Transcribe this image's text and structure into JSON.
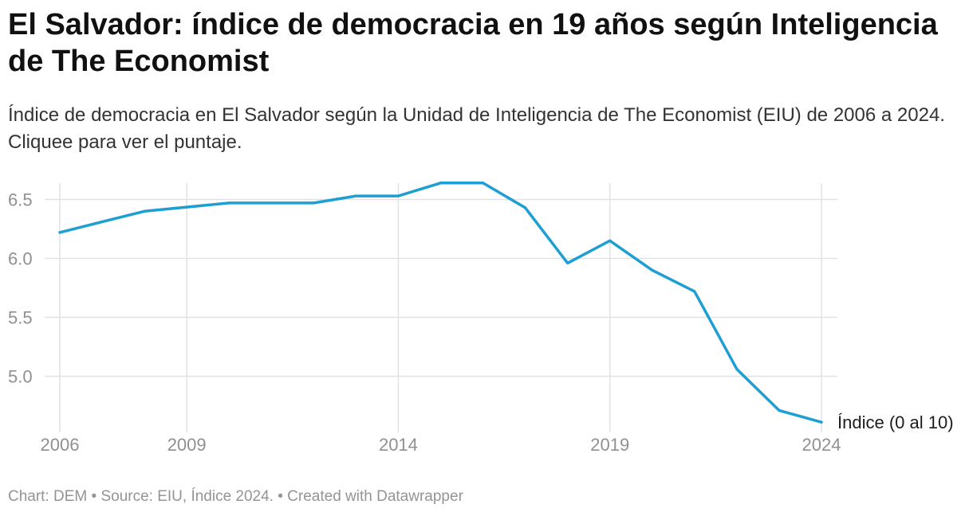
{
  "header": {
    "title": "El Salvador: índice de democracia en 19 años según Inteligencia de The Economist",
    "subtitle": "Índice de democracia en El Salvador según la Unidad de Inteligencia de The Economist (EIU) de 2006 a 2024. Cliquee para ver el puntaje."
  },
  "chart_data": {
    "type": "line",
    "title": "El Salvador: índice de democracia en 19 años según Inteligencia de The Economist",
    "xlabel": "",
    "ylabel": "",
    "x": [
      2006,
      2008,
      2010,
      2011,
      2012,
      2013,
      2014,
      2015,
      2016,
      2017,
      2018,
      2019,
      2020,
      2021,
      2022,
      2023,
      2024
    ],
    "series": [
      {
        "name": "Índice (0 al 10)",
        "values": [
          6.22,
          6.4,
          6.47,
          6.47,
          6.47,
          6.53,
          6.53,
          6.64,
          6.64,
          6.43,
          5.96,
          6.15,
          5.9,
          5.72,
          5.06,
          4.71,
          4.61
        ]
      }
    ],
    "x_ticks": [
      "2006",
      "2009",
      "2014",
      "2019",
      "2024"
    ],
    "y_ticks": [
      "6.5",
      "6.0",
      "5.5",
      "5.0"
    ],
    "xlim": [
      2006,
      2024
    ],
    "ylim": [
      4.6,
      6.65
    ],
    "grid": true,
    "line_color": "#1d9fd3"
  },
  "footer": {
    "text": "Chart: DEM • Source: EIU, Índice 2024. • Created with Datawrapper"
  }
}
